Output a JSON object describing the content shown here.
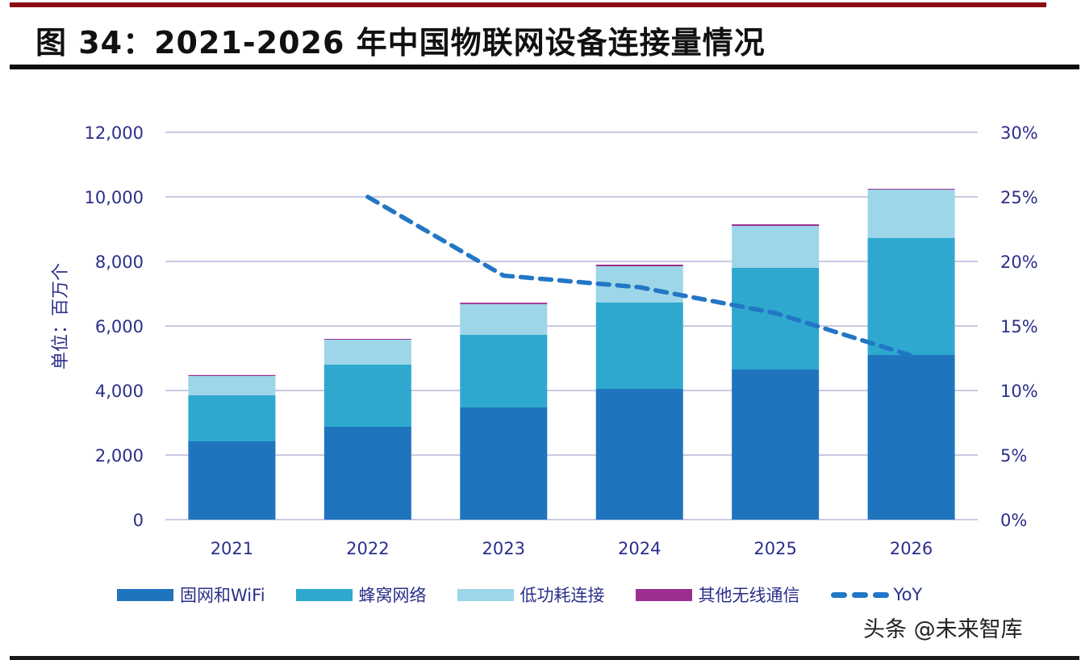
{
  "title": "图 34：2021-2026 年中国物联网设备连接量情况",
  "watermark": "头条 @未来智库",
  "colors": {
    "fixed_wifi": "#1f74be",
    "cellular": "#2ea8cf",
    "lpwa": "#9dd6e8",
    "other_wireless": "#9b2f8f",
    "yoy": "#2276c6",
    "axis_text": "#2b2f8a",
    "grid": "#b7b9dc"
  },
  "chart_data": {
    "type": "bar",
    "stacked": true,
    "title": "2021-2026 年中国物联网设备连接量情况",
    "categories": [
      "2021",
      "2022",
      "2023",
      "2024",
      "2025",
      "2026"
    ],
    "ylabel": "单位：百万个",
    "y2label": "",
    "ylim": [
      0,
      12000
    ],
    "yticks": [
      0,
      2000,
      4000,
      6000,
      8000,
      10000,
      12000
    ],
    "ytick_labels": [
      "0",
      "2,000",
      "4,000",
      "6,000",
      "8,000",
      "10,000",
      "12,000"
    ],
    "y2lim": [
      0,
      30
    ],
    "y2ticks": [
      0,
      5,
      10,
      15,
      20,
      25,
      30
    ],
    "y2tick_labels": [
      "0%",
      "5%",
      "10%",
      "15%",
      "20%",
      "25%",
      "30%"
    ],
    "grid": true,
    "legend_position": "bottom",
    "series": [
      {
        "name": "固网和WiFi",
        "key": "fixed_wifi",
        "type": "bar",
        "values": [
          2425,
          2875,
          3475,
          4050,
          4650,
          5100
        ]
      },
      {
        "name": "蜂窝网络",
        "key": "cellular",
        "type": "bar",
        "values": [
          1425,
          1925,
          2250,
          2675,
          3150,
          3625
        ]
      },
      {
        "name": "低功耗连接",
        "key": "lpwa",
        "type": "bar",
        "values": [
          600,
          775,
          950,
          1125,
          1300,
          1500
        ]
      },
      {
        "name": "其他无线通信",
        "key": "other_wireless",
        "type": "bar",
        "values": [
          30,
          25,
          45,
          50,
          50,
          25
        ]
      },
      {
        "name": "YoY",
        "key": "yoy",
        "type": "line",
        "axis": "right",
        "dashed": true,
        "unit": "%",
        "values": [
          null,
          25.0,
          18.9,
          18.0,
          16.0,
          12.7
        ]
      }
    ]
  }
}
